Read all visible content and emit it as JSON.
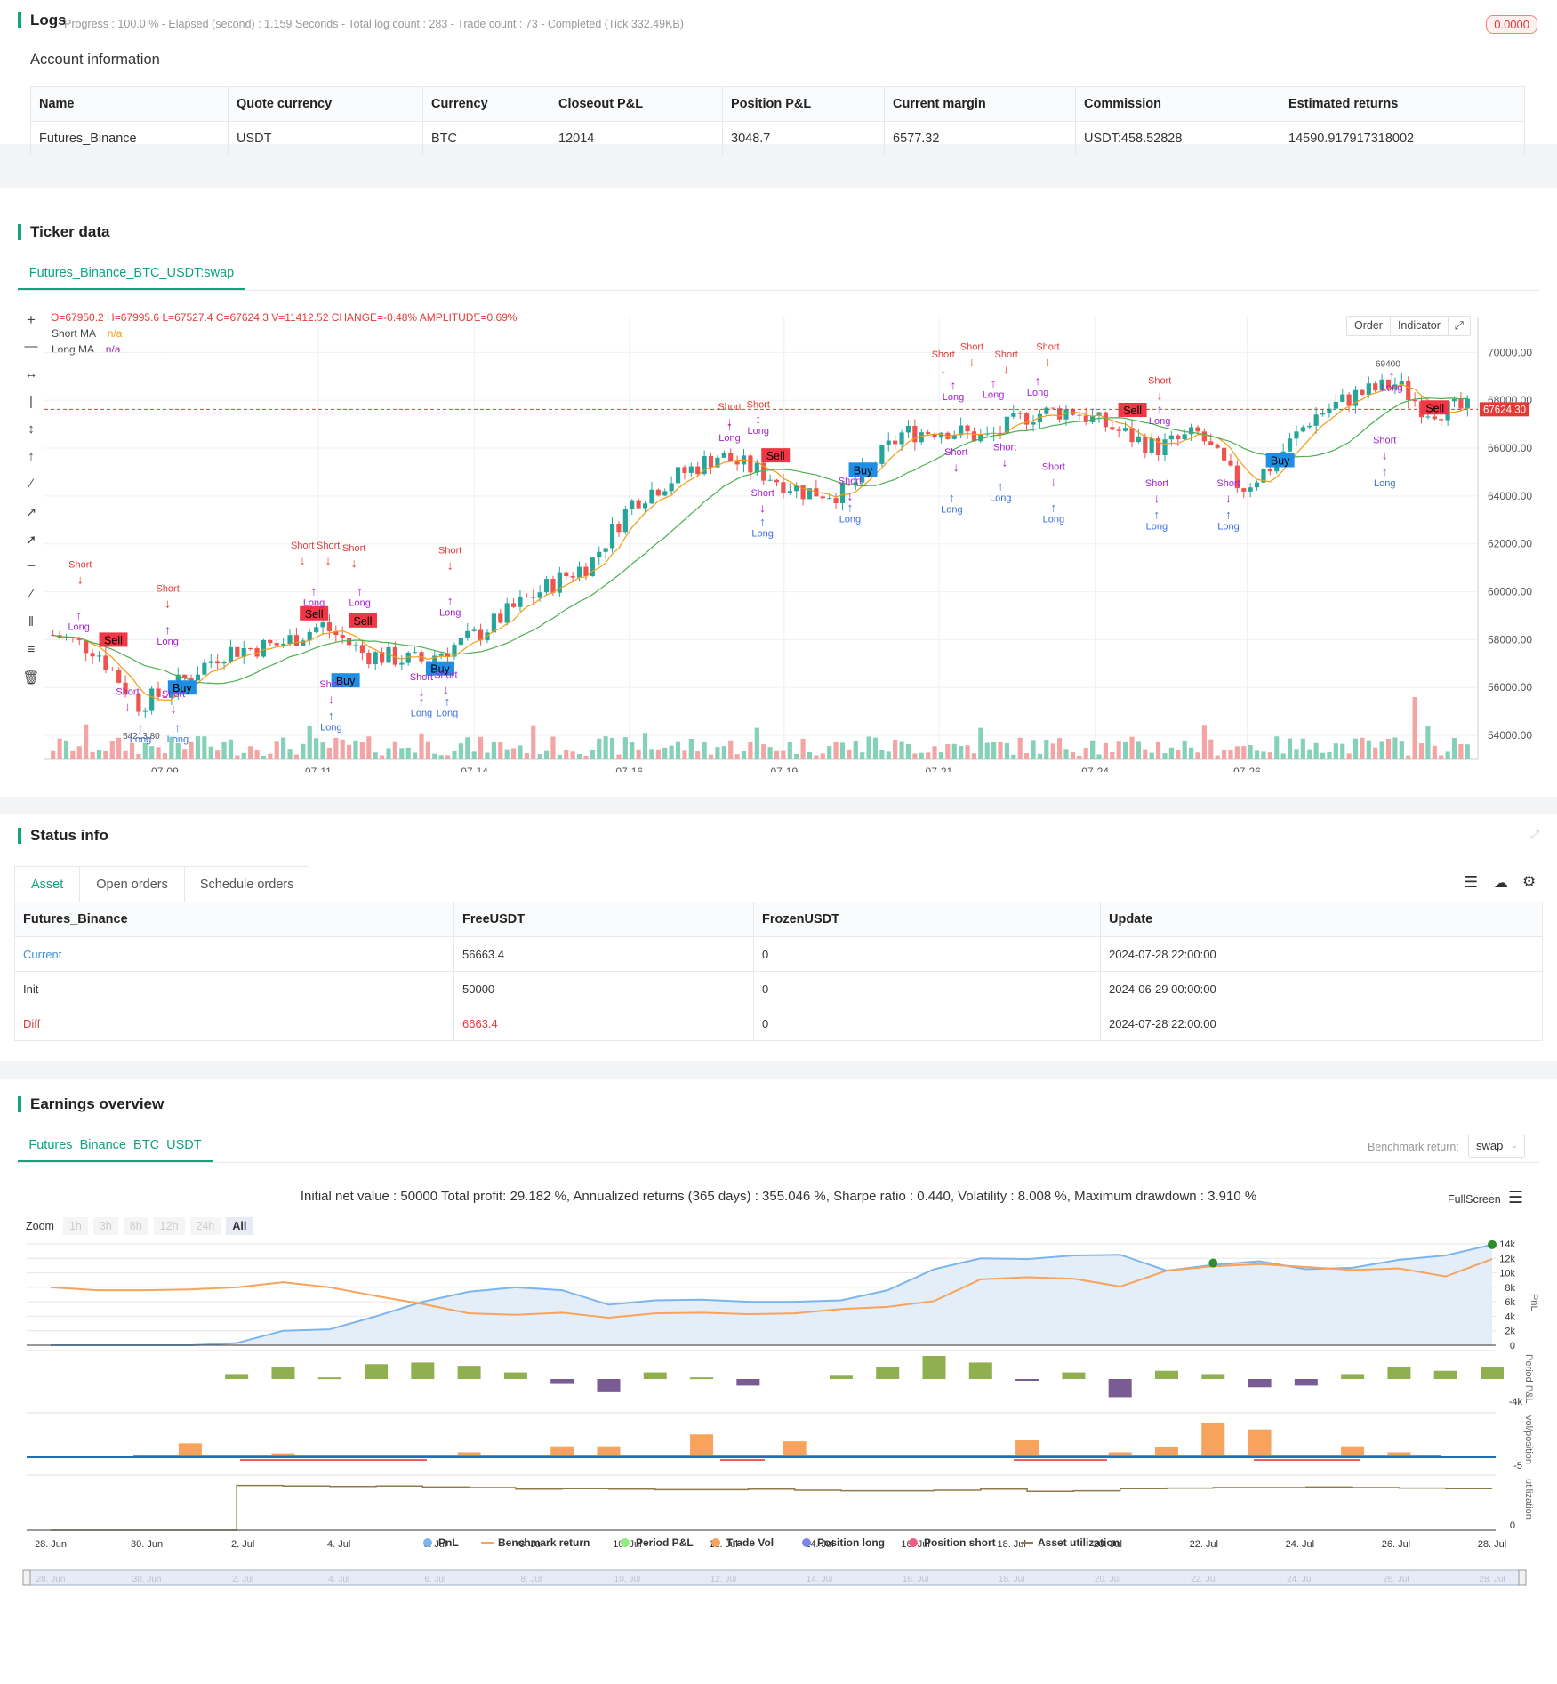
{
  "logs": {
    "title": "Logs",
    "progress": "Progress : 100.0 % - Elapsed (second) : 1.159  Seconds - Total log count : 283 - Trade count : 73 - Completed (Tick 332.49KB)",
    "badge": "0.0000"
  },
  "account": {
    "title": "Account information",
    "headers": [
      "Name",
      "Quote currency",
      "Currency",
      "Closeout P&L",
      "Position P&L",
      "Current margin",
      "Commission",
      "Estimated returns"
    ],
    "row": [
      "Futures_Binance",
      "USDT",
      "BTC",
      "12014",
      "3048.7",
      "6577.32",
      "USDT:458.52828",
      "14590.917917318002"
    ]
  },
  "ticker": {
    "title": "Ticker data",
    "tab": "Futures_Binance_BTC_USDT:swap",
    "ohlc_line": "O=67950.2 H=67995.6 L=67527.4 C=67624.3 V=11412.52 CHANGE=-0.48% AMPLITUDE=0.69%",
    "legend": [
      {
        "name": "Short MA",
        "value": "n/a"
      },
      {
        "name": "Long MA",
        "value": "n/a"
      }
    ],
    "buttons": [
      "Order",
      "Indicator"
    ],
    "price_label": "67624.30",
    "low_label": "54213.80",
    "high_label": "69400"
  },
  "chart_data": [
    {
      "type": "candlestick",
      "title": "",
      "x_ticks": [
        "07-09",
        "07-11",
        "07-14",
        "07-16",
        "07-19",
        "07-21",
        "07-24",
        "07-26"
      ],
      "y_ticks": [
        54000,
        56000,
        58000,
        60000,
        62000,
        64000,
        66000,
        68000,
        70000
      ],
      "ylim": [
        53000,
        71500
      ],
      "last_price": 67624.3,
      "series": [
        {
          "name": "Short MA",
          "color": "#f39c12"
        },
        {
          "name": "Long MA",
          "color": "#4caf50"
        }
      ],
      "signals": [
        {
          "label": "Sell",
          "t": 0.04,
          "price": 58000
        },
        {
          "label": "Buy",
          "t": 0.088,
          "price": 56000
        },
        {
          "label": "Sell",
          "t": 0.18,
          "price": 59100
        },
        {
          "label": "Buy",
          "t": 0.202,
          "price": 56300
        },
        {
          "label": "Sell",
          "t": 0.214,
          "price": 58800
        },
        {
          "label": "Buy",
          "t": 0.268,
          "price": 56800
        },
        {
          "label": "Sell",
          "t": 0.502,
          "price": 65700
        },
        {
          "label": "Buy",
          "t": 0.563,
          "price": 65100
        },
        {
          "label": "Sell",
          "t": 0.751,
          "price": 67600
        },
        {
          "label": "Buy",
          "t": 0.854,
          "price": 65500
        },
        {
          "label": "Sell",
          "t": 0.962,
          "price": 67700
        }
      ]
    },
    {
      "type": "line",
      "title": "Initial net value : 50000 Total profit: 29.182 %, Annualized returns (365 days) : 355.046 %, Sharpe ratio : 0.440, Volatility : 8.008 %, Maximum drawdown : 3.910 %",
      "x_ticks": [
        "28. Jun",
        "30. Jun",
        "2. Jul",
        "4. Jul",
        "6. Jul",
        "8. Jul",
        "10. Jul",
        "12. Jul",
        "14. Jul",
        "16. Jul",
        "18. Jul",
        "20. Jul",
        "22. Jul",
        "24. Jul",
        "26. Jul",
        "28. Jul"
      ],
      "y_ticks": [
        "0",
        "2k",
        "4k",
        "6k",
        "8k",
        "10k",
        "12k",
        "14k"
      ],
      "ylim": [
        0,
        14000
      ],
      "series": [
        {
          "name": "PnL",
          "color": "#7cb5ec",
          "values": [
            0,
            0,
            0,
            0,
            300,
            2000,
            2200,
            4000,
            6000,
            7400,
            8000,
            7600,
            5600,
            6200,
            6300,
            6000,
            6000,
            6200,
            7600,
            10500,
            12000,
            11900,
            12400,
            12500,
            10300,
            11100,
            11600,
            10500,
            10700,
            11800,
            12400,
            13900
          ]
        },
        {
          "name": "Benchmark return",
          "color": "#f7a35c",
          "values": [
            8000,
            7600,
            7600,
            7700,
            8000,
            8700,
            8000,
            6800,
            5700,
            4400,
            4200,
            4500,
            3800,
            4400,
            4500,
            4300,
            4400,
            5000,
            5300,
            6100,
            9100,
            9400,
            9200,
            8100,
            10300,
            10900,
            11200,
            10800,
            10400,
            10600,
            9500,
            11900
          ]
        }
      ]
    },
    {
      "type": "bar",
      "title": "",
      "ylabel": "Period P&L",
      "y_ticks": [
        "-4k"
      ],
      "series": [
        {
          "name": "Period P&L",
          "values": [
            0,
            0,
            0,
            0,
            300,
            700,
            100,
            900,
            1000,
            800,
            400,
            -300,
            -800,
            400,
            100,
            -400,
            0,
            200,
            700,
            1400,
            1000,
            -100,
            400,
            -1100,
            500,
            300,
            -500,
            -400,
            300,
            700,
            500,
            700
          ]
        }
      ]
    },
    {
      "type": "bar",
      "title": "",
      "ylabel": "vol/position",
      "y_ticks": [
        "-5"
      ],
      "series": [
        {
          "name": "Trade Vol",
          "values": [
            0,
            0,
            0,
            1.4,
            0,
            0.4,
            0,
            0,
            0,
            0.5,
            0,
            1.1,
            1.1,
            0,
            2.3,
            0,
            1.6,
            0,
            0,
            0,
            0,
            1.7,
            0,
            0.5,
            1.0,
            3.4,
            2.8,
            0,
            1.1,
            0.5,
            0,
            0
          ]
        }
      ]
    },
    {
      "type": "line",
      "title": "",
      "ylabel": "utilization",
      "y_ticks": [
        "0"
      ],
      "series": [
        {
          "name": "Asset utilization",
          "color": "#8d7b4a",
          "values": [
            0,
            0,
            0,
            0,
            0.84,
            0.83,
            0.82,
            0.83,
            0.81,
            0.8,
            0.77,
            0.78,
            0.77,
            0.76,
            0.76,
            0.77,
            0.75,
            0.74,
            0.74,
            0.75,
            0.77,
            0.73,
            0.74,
            0.78,
            0.79,
            0.8,
            0.8,
            0.81,
            0.8,
            0.79,
            0.78,
            0.78
          ]
        }
      ]
    }
  ],
  "status": {
    "title": "Status info",
    "tabs": [
      "Asset",
      "Open orders",
      "Schedule orders"
    ],
    "headers": [
      "Futures_Binance",
      "FreeUSDT",
      "FrozenUSDT",
      "Update"
    ],
    "rows": [
      [
        "Current",
        "56663.4",
        "0",
        "2024-07-28 22:00:00"
      ],
      [
        "Init",
        "50000",
        "0",
        "2024-06-29 00:00:00"
      ],
      [
        "Diff",
        "6663.4",
        "0",
        "2024-07-28 22:00:00"
      ]
    ]
  },
  "earnings": {
    "title": "Earnings overview",
    "tab": "Futures_Binance_BTC_USDT",
    "benchmark_label": "Benchmark return:",
    "benchmark_value": "swap",
    "fullscreen": "FullScreen",
    "zoom_label": "Zoom",
    "zoom_options": [
      "1h",
      "3h",
      "8h",
      "12h",
      "24h",
      "All"
    ],
    "legend": [
      "PnL",
      "Benchmark return",
      "Period P&L",
      "Trade Vol",
      "Position long",
      "Position short",
      "Asset utilization"
    ],
    "axis_pnl": "PnL"
  },
  "colors": {
    "accent": "#0fa37f",
    "up": "#26a69a",
    "down": "#ef5350",
    "buy": "#1f8fe5",
    "sell": "#f23645"
  }
}
